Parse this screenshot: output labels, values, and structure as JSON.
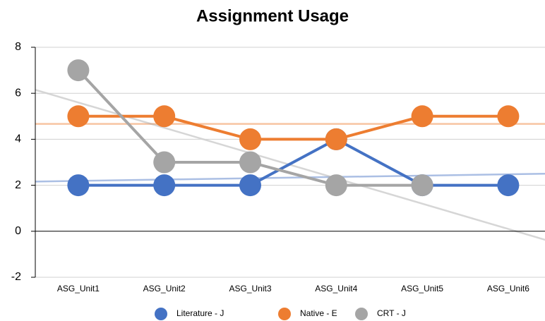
{
  "chart_data": {
    "type": "line",
    "title": "Assignment Usage",
    "categories": [
      "ASG_Unit1",
      "ASG_Unit2",
      "ASG_Unit3",
      "ASG_Unit4",
      "ASG_Unit5",
      "ASG_Unit6"
    ],
    "series": [
      {
        "name": "Literature - J",
        "color": "#4472c4",
        "values": [
          2,
          2,
          2,
          4,
          2,
          2
        ]
      },
      {
        "name": "Native - E",
        "color": "#ed7d31",
        "values": [
          5,
          5,
          4,
          4,
          5,
          5
        ]
      },
      {
        "name": "CRT - J",
        "color": "#a5a5a5",
        "values": [
          7,
          3,
          3,
          2,
          2,
          null
        ]
      }
    ],
    "ylim": [
      -2,
      8
    ],
    "yticks": [
      -2,
      0,
      2,
      4,
      6,
      8
    ],
    "grid": true,
    "trendline": "linear",
    "legend": "bottom"
  }
}
